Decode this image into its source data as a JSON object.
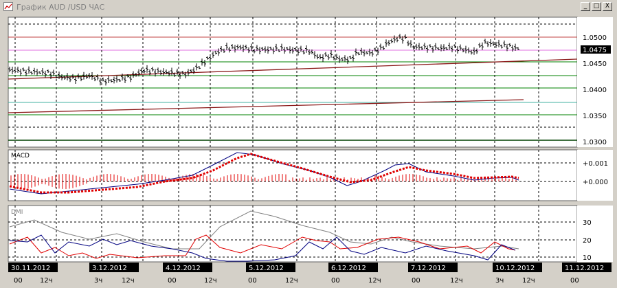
{
  "window": {
    "title": "График AUD /USD  ЧАС",
    "buttons": {
      "minimize": "_",
      "maximize": "□",
      "close": "X"
    }
  },
  "main_panel": {
    "price_ticks": [
      "1.0500",
      "1.0450",
      "1.0400",
      "1.0350",
      "1.0300"
    ],
    "current_price": "1.0475"
  },
  "macd_panel": {
    "label": "MACD",
    "ticks": [
      "+0.001",
      "+0.000"
    ]
  },
  "dmi_panel": {
    "label": "DMI",
    "ticks": [
      "30",
      "20",
      "10"
    ]
  },
  "dates": [
    "30.11.2012",
    "3.12.2012",
    "4.12.2012",
    "5.12.2012",
    "6.12.2012",
    "7.12.2012",
    "10.12.2012",
    "11.12.2012"
  ],
  "hours": [
    "00",
    "12ч",
    "3ч",
    "12ч",
    "00",
    "12ч",
    "00",
    "12ч",
    "00",
    "12ч",
    "00",
    "12ч",
    "3ч",
    "12ч",
    "00"
  ],
  "colors": {
    "background": "#ffffff",
    "frame": "#d4d0c8",
    "price_bars": "#000000",
    "macd_line": "#000080",
    "signal_line": "#e00000",
    "dmi_plus": "#e00000",
    "dmi_minus": "#000080",
    "adx": "#808080",
    "trend_line": "#8b1a1a",
    "magenta_level": "#e070e0",
    "green_level": "#008000",
    "teal_level": "#40b0a0"
  }
}
